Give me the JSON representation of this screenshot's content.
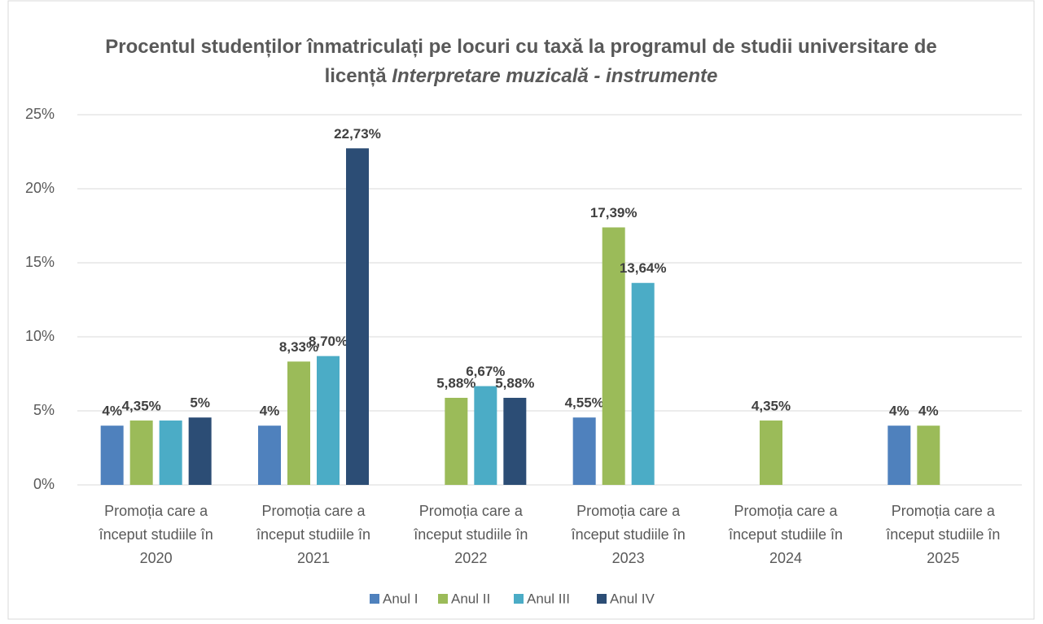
{
  "chart_data": {
    "type": "bar",
    "title": "Procentul studenților înmatriculați pe locuri cu taxă la programul de studii universitare de licență",
    "title_emphasis": "Interpretare muzicală - instrumente",
    "categories": [
      "Promoția care a început studiile în 2020",
      "Promoția care a început studiile în 2021",
      "Promoția care a început studiile în 2022",
      "Promoția care a început studiile în 2023",
      "Promoția care a început studiile în 2024",
      "Promoția care a început studiile în 2025"
    ],
    "series": [
      {
        "name": "Anul I",
        "color": "#4f81bd",
        "values": [
          4,
          4,
          null,
          4.55,
          null,
          4
        ],
        "value_labels": [
          "4%",
          "4%",
          null,
          "4,55%",
          null,
          "4%"
        ]
      },
      {
        "name": "Anul II",
        "color": "#9bbb59",
        "values": [
          4.35,
          8.33,
          5.88,
          17.39,
          4.35,
          4
        ],
        "value_labels": [
          "4,35%",
          "8,33%",
          "5,88%",
          "17,39%",
          "4,35%",
          "4%"
        ]
      },
      {
        "name": "Anul III",
        "color": "#4bacc6",
        "values": [
          4.35,
          8.7,
          6.67,
          13.64,
          null,
          null
        ],
        "value_labels": [
          null,
          "8,70%",
          "6,67%",
          "13,64%",
          null,
          null
        ]
      },
      {
        "name": "Anul IV",
        "color": "#2c4d75",
        "values": [
          4.55,
          22.73,
          5.88,
          null,
          null,
          null
        ],
        "value_labels": [
          "5%",
          "22,73%",
          "5,88%",
          null,
          null,
          null
        ]
      }
    ],
    "ylim": [
      0,
      25
    ],
    "yticks": [
      {
        "value": 0,
        "label": "0%"
      },
      {
        "value": 5,
        "label": "5%"
      },
      {
        "value": 10,
        "label": "10%"
      },
      {
        "value": 15,
        "label": "15%"
      },
      {
        "value": 20,
        "label": "20%"
      },
      {
        "value": 25,
        "label": "25%"
      }
    ],
    "grid": true,
    "legend": "bottom"
  }
}
